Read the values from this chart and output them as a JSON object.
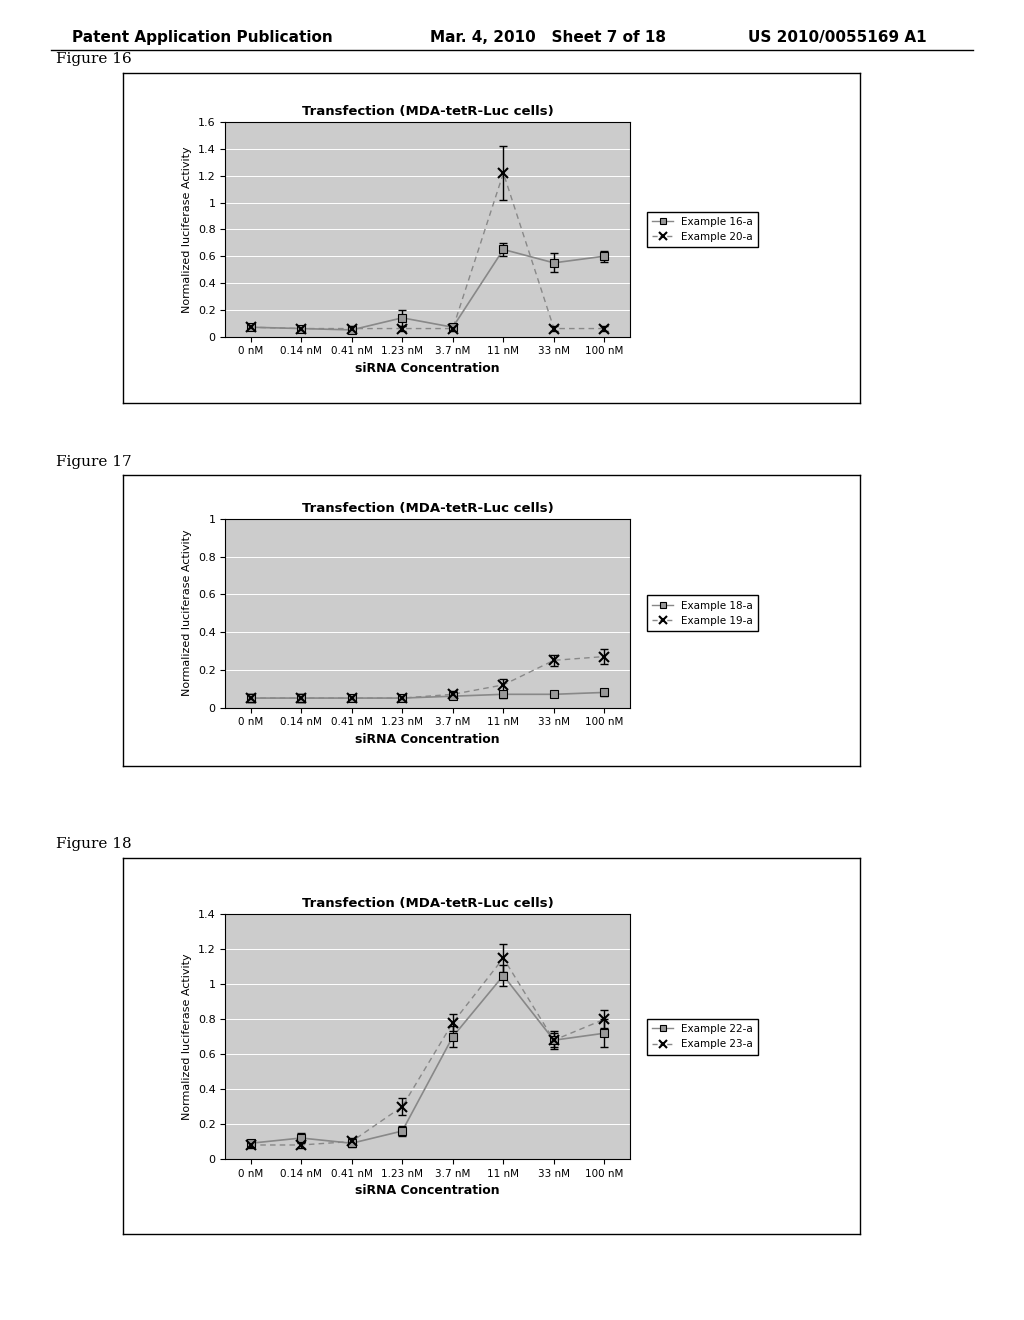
{
  "x_labels": [
    "0 nM",
    "0.14 nM",
    "0.41 nM",
    "1.23 nM",
    "3.7 nM",
    "11 nM",
    "33 nM",
    "100 nM"
  ],
  "xlabel": "siRNA Concentration",
  "ylabel": "Normalized luciferase Activity",
  "title": "Transfection (MDA-tetR-Luc cells)",
  "background_color": "#c8c8c8",
  "header_left": "Patent Application Publication",
  "header_mid": "Mar. 4, 2010   Sheet 7 of 18",
  "header_right": "US 2010/0055169 A1",
  "fig16": {
    "label": "Figure 16",
    "series1_label": "Example 16-a",
    "series2_label": "Example 20-a",
    "series1_y": [
      0.07,
      0.06,
      0.05,
      0.14,
      0.07,
      0.65,
      0.55,
      0.6
    ],
    "series1_yerr": [
      0.02,
      0.02,
      0.02,
      0.06,
      0.02,
      0.05,
      0.07,
      0.04
    ],
    "series2_y": [
      0.07,
      0.06,
      0.06,
      0.06,
      0.06,
      1.22,
      0.06,
      0.06
    ],
    "series2_yerr": [
      0.02,
      0.02,
      0.02,
      0.02,
      0.02,
      0.2,
      0.02,
      0.02
    ],
    "ylim": [
      0,
      1.6
    ],
    "yticks": [
      0,
      0.2,
      0.4,
      0.6,
      0.8,
      1.0,
      1.2,
      1.4,
      1.6
    ]
  },
  "fig17": {
    "label": "Figure 17",
    "series1_label": "Example 18-a",
    "series2_label": "Example 19-a",
    "series1_y": [
      0.05,
      0.05,
      0.05,
      0.05,
      0.06,
      0.07,
      0.07,
      0.08
    ],
    "series1_yerr": [
      0.02,
      0.02,
      0.01,
      0.01,
      0.01,
      0.02,
      0.01,
      0.02
    ],
    "series2_y": [
      0.05,
      0.05,
      0.05,
      0.05,
      0.07,
      0.12,
      0.25,
      0.27
    ],
    "series2_yerr": [
      0.02,
      0.02,
      0.01,
      0.01,
      0.02,
      0.03,
      0.03,
      0.04
    ],
    "ylim": [
      0,
      1.0
    ],
    "yticks": [
      0,
      0.2,
      0.4,
      0.6,
      0.8,
      1.0
    ]
  },
  "fig18": {
    "label": "Figure 18",
    "series1_label": "Example 22-a",
    "series2_label": "Example 23-a",
    "series1_y": [
      0.09,
      0.12,
      0.09,
      0.16,
      0.7,
      1.05,
      0.68,
      0.72
    ],
    "series1_yerr": [
      0.02,
      0.03,
      0.02,
      0.03,
      0.06,
      0.06,
      0.05,
      0.08
    ],
    "series2_y": [
      0.08,
      0.08,
      0.1,
      0.3,
      0.78,
      1.15,
      0.68,
      0.8
    ],
    "series2_yerr": [
      0.02,
      0.02,
      0.02,
      0.05,
      0.05,
      0.08,
      0.04,
      0.05
    ],
    "ylim": [
      0,
      1.4
    ],
    "yticks": [
      0,
      0.2,
      0.4,
      0.6,
      0.8,
      1.0,
      1.2,
      1.4
    ]
  }
}
